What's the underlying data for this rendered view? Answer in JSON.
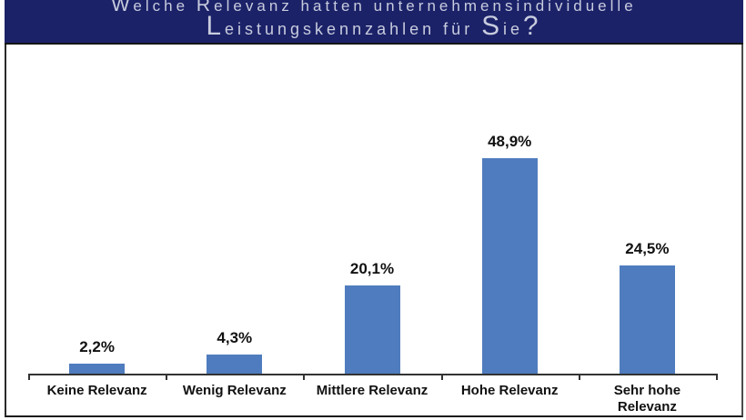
{
  "header": {
    "title_line1": "Welche Relevanz hatten unternehmensindividuelle",
    "title_line2": "Leistungskennzahlen für Sie?",
    "background_color": "#1B2268",
    "text_color": "#C8CCDE"
  },
  "chart_data": {
    "type": "bar",
    "title": "Welche Relevanz hatten unternehmensindividuelle Leistungskennzahlen für Sie?",
    "categories": [
      "Keine Relevanz",
      "Wenig Relevanz",
      "Mittlere Relevanz",
      "Hohe Relevanz",
      "Sehr hohe Relevanz"
    ],
    "category_label_lines": [
      [
        "Keine Relevanz"
      ],
      [
        "Wenig Relevanz"
      ],
      [
        "Mittlere Relevanz"
      ],
      [
        "Hohe Relevanz"
      ],
      [
        "Sehr hohe",
        "Relevanz"
      ]
    ],
    "values": [
      2.2,
      4.3,
      20.1,
      48.9,
      24.5
    ],
    "value_labels": [
      "2,2%",
      "4,3%",
      "20,1%",
      "48,9%",
      "24,5%"
    ],
    "xlabel": "",
    "ylabel": "",
    "ylim": [
      0,
      55
    ],
    "grid": false,
    "legend": false,
    "bar_color": "#4F7CBE",
    "value_label_color": "#111111",
    "category_label_color": "#111111",
    "axis_line_color": "#333333"
  }
}
